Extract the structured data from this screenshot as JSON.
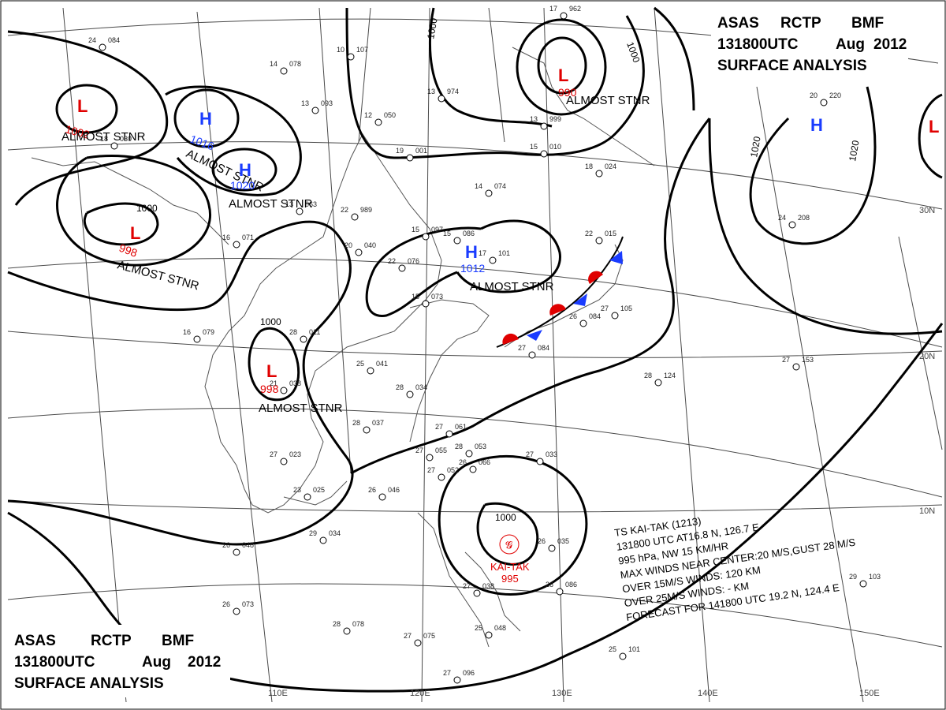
{
  "header_top": {
    "line1": [
      "ASAS",
      "RCTP",
      "BMF"
    ],
    "line2": [
      "131800UTC",
      "Aug",
      "2012"
    ],
    "line3": "SURFACE  ANALYSIS"
  },
  "header_bottom": {
    "line1": [
      "ASAS",
      "RCTP",
      "BMF"
    ],
    "line2": [
      "131800UTC",
      "Aug",
      "2012"
    ],
    "line3": "SURFACE  ANALYSIS"
  },
  "longitude_labels": [
    "110E",
    "120E",
    "130E",
    "140E",
    "150E"
  ],
  "latitude_labels": [
    "30N",
    "20N",
    "10N"
  ],
  "isobar_labels": [
    "1000",
    "1000",
    "1000",
    "1000",
    "1020",
    "1020",
    "1000"
  ],
  "pressure_systems": [
    {
      "type": "L",
      "value": "1002",
      "note": "ALMOST STNR",
      "color": "#e00000"
    },
    {
      "type": "H",
      "value": "1016",
      "note": "ALMOST STNR",
      "color": "#1a3cff"
    },
    {
      "type": "H",
      "value": "1020",
      "note": "ALMOST STNR",
      "color": "#1a3cff"
    },
    {
      "type": "L",
      "value": "998",
      "note": "ALMOST STNR",
      "color": "#e00000"
    },
    {
      "type": "L",
      "value": "998",
      "note": "ALMOST STNR",
      "color": "#e00000"
    },
    {
      "type": "H",
      "value": "1012",
      "note": "ALMOST STNR",
      "color": "#1a3cff"
    },
    {
      "type": "L",
      "value": "990",
      "note": "ALMOST STNR",
      "color": "#e00000"
    },
    {
      "type": "H",
      "value": "",
      "note": "",
      "color": "#1a3cff"
    },
    {
      "type": "L",
      "value": "",
      "note": "",
      "color": "#e00000"
    }
  ],
  "typhoon": {
    "name": "KAI-TAK",
    "pressure": "995",
    "info_lines": [
      "TS  KAI-TAK  (1213)",
      "131800 UTC  AT16.8 N, 126.7 E",
      "995 hPa, NW  15 KM/HR",
      "MAX WINDS NEAR CENTER:20 M/S,GUST 28 M/S",
      "OVER 15M/S WINDS: 120 KM",
      "OVER 25M/S WINDS: - KM",
      "FORECAST FOR 141800 UTC 19.2 N, 124.4 E"
    ]
  },
  "stations": [
    {
      "p": "084",
      "t": "24"
    },
    {
      "p": "078",
      "t": "14"
    },
    {
      "p": "107",
      "t": "10"
    },
    {
      "p": "093",
      "t": "13"
    },
    {
      "p": "050",
      "t": "12"
    },
    {
      "p": "974",
      "t": "13"
    },
    {
      "p": "030",
      "t": "18"
    },
    {
      "p": "063",
      "t": "13"
    },
    {
      "p": "989",
      "t": "22"
    },
    {
      "p": "097",
      "t": "15"
    },
    {
      "p": "086",
      "t": "15"
    },
    {
      "p": "074",
      "t": "14"
    },
    {
      "p": "040",
      "t": "20"
    },
    {
      "p": "076",
      "t": "22"
    },
    {
      "p": "071",
      "t": "16"
    },
    {
      "p": "073",
      "t": "15"
    },
    {
      "p": "101",
      "t": "17"
    },
    {
      "p": "079",
      "t": "16"
    },
    {
      "p": "011",
      "t": "28"
    },
    {
      "p": "041",
      "t": "25"
    },
    {
      "p": "038",
      "t": "21"
    },
    {
      "p": "034",
      "t": "28"
    },
    {
      "p": "037",
      "t": "28"
    },
    {
      "p": "061",
      "t": "27"
    },
    {
      "p": "053",
      "t": "28"
    },
    {
      "p": "055",
      "t": "27"
    },
    {
      "p": "066",
      "t": "26"
    },
    {
      "p": "052",
      "t": "27"
    },
    {
      "p": "033",
      "t": "27"
    },
    {
      "p": "023",
      "t": "27"
    },
    {
      "p": "025",
      "t": "23"
    },
    {
      "p": "046",
      "t": "26"
    },
    {
      "p": "034",
      "t": "29"
    },
    {
      "p": "048",
      "t": "26"
    },
    {
      "p": "073",
      "t": "26"
    },
    {
      "p": "078",
      "t": "28"
    },
    {
      "p": "075",
      "t": "27"
    },
    {
      "p": "038",
      "t": "27"
    },
    {
      "p": "048",
      "t": "25"
    },
    {
      "p": "035",
      "t": "26"
    },
    {
      "p": "086",
      "t": "26"
    },
    {
      "p": "096",
      "t": "27"
    },
    {
      "p": "101",
      "t": "25"
    },
    {
      "p": "103",
      "t": "29"
    },
    {
      "p": "124",
      "t": "28"
    },
    {
      "p": "153",
      "t": "27"
    },
    {
      "p": "105",
      "t": "27"
    },
    {
      "p": "084",
      "t": "26"
    },
    {
      "p": "084",
      "t": "27"
    },
    {
      "p": "010",
      "t": "15"
    },
    {
      "p": "999",
      "t": "13"
    },
    {
      "p": "001",
      "t": "19"
    },
    {
      "p": "024",
      "t": "18"
    },
    {
      "p": "015",
      "t": "22"
    },
    {
      "p": "208",
      "t": "24"
    },
    {
      "p": "220",
      "t": "20"
    },
    {
      "p": "962",
      "t": "17"
    }
  ]
}
